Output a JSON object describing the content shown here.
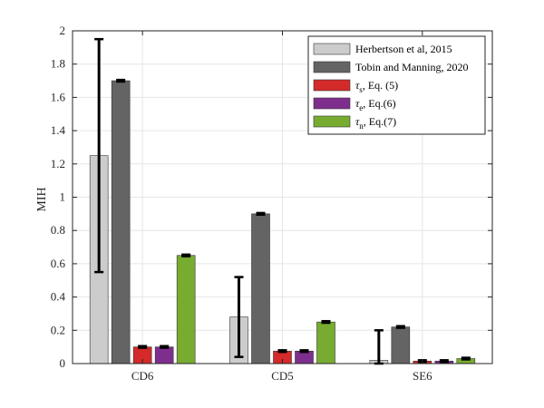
{
  "chart_data": {
    "type": "bar",
    "title": "",
    "xlabel": "",
    "ylabel": "MIH",
    "ylim": [
      0,
      2
    ],
    "yticks": [
      "0",
      "0.2",
      "0.4",
      "0.6",
      "0.8",
      "1",
      "1.2",
      "1.4",
      "1.6",
      "1.8",
      "2"
    ],
    "categories": [
      "CD6",
      "CD5",
      "SE6"
    ],
    "grid": true,
    "legend_position": "top-right",
    "series": [
      {
        "name": "Herbertson et al, 2015",
        "legend": {
          "main": "Herbertson et al, 2015",
          "sub": "",
          "tail": ""
        },
        "color": "#cccccc",
        "values": [
          1.25,
          0.28,
          0.02
        ],
        "error_low": [
          0.55,
          0.04,
          0.0
        ],
        "error_high": [
          1.95,
          0.52,
          0.2
        ]
      },
      {
        "name": "Tobin and Manning, 2020",
        "legend": {
          "main": "Tobin and Manning, 2020",
          "sub": "",
          "tail": ""
        },
        "color": "#646464",
        "values": [
          1.7,
          0.9,
          0.22
        ],
        "error_low": [
          1.695,
          0.895,
          0.215
        ],
        "error_high": [
          1.705,
          0.905,
          0.225
        ]
      },
      {
        "name": "τs, Eq. (5)",
        "legend": {
          "main": "τ",
          "sub": "s",
          "tail": ", Eq. (5)"
        },
        "color": "#d42a2a",
        "values": [
          0.1,
          0.075,
          0.015
        ],
        "error_low": [
          0.095,
          0.07,
          0.01
        ],
        "error_high": [
          0.105,
          0.08,
          0.02
        ]
      },
      {
        "name": "τe, Eq.(6)",
        "legend": {
          "main": "τ",
          "sub": "e",
          "tail": ", Eq.(6)"
        },
        "color": "#7e2f8e",
        "values": [
          0.1,
          0.075,
          0.015
        ],
        "error_low": [
          0.095,
          0.07,
          0.01
        ],
        "error_high": [
          0.105,
          0.08,
          0.02
        ]
      },
      {
        "name": "τn, Eq.(7)",
        "legend": {
          "main": "τ",
          "sub": "n",
          "tail": ", Eq.(7)"
        },
        "color": "#77ac30",
        "values": [
          0.65,
          0.25,
          0.03
        ],
        "error_low": [
          0.645,
          0.245,
          0.025
        ],
        "error_high": [
          0.655,
          0.255,
          0.035
        ]
      }
    ]
  }
}
